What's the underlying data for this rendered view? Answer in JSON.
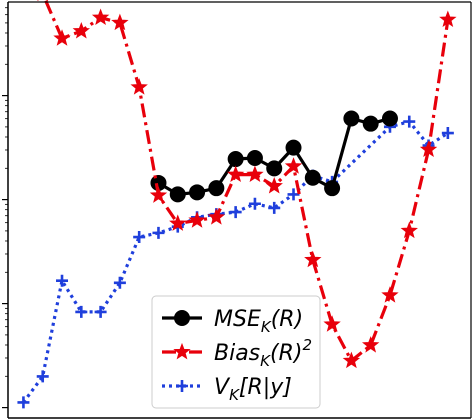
{
  "chart_data": {
    "type": "line",
    "x": [
      1,
      2,
      3,
      4,
      5,
      6,
      7,
      8,
      9,
      10,
      11,
      12,
      13,
      14,
      15,
      16,
      17,
      18,
      19,
      20,
      21,
      22,
      23
    ],
    "yscale": "log",
    "ylim_exp": [
      -4.1,
      -0.1
    ],
    "xlim": [
      0.2,
      24.2
    ],
    "y_tick_exponents": [
      -4,
      -3,
      -2,
      -1
    ],
    "grid": false,
    "legend_position": "bottom-center",
    "series": [
      {
        "name": "MSE",
        "legend_html": "MSE<tspan font-size='15' dy='6'>K</tspan><tspan dy='-6'>(R)</tspan>",
        "color": "#000000",
        "style": "solid",
        "marker": "circle",
        "y_exp": [
          null,
          null,
          null,
          null,
          null,
          null,
          null,
          -1.84,
          -1.95,
          -1.93,
          -1.89,
          -1.61,
          -1.6,
          -1.7,
          -1.5,
          -1.79,
          -1.89,
          -1.22,
          -1.27,
          -1.22,
          null,
          null,
          null
        ]
      },
      {
        "name": "Bias",
        "legend_html": "Bias<tspan font-size='15' dy='6'>K</tspan><tspan dy='-6'>(R)</tspan><tspan font-size='15' dy='-10'>2</tspan>",
        "color": "#e8000b",
        "style": "dashdot",
        "marker": "star",
        "y_exp": [
          -0.01,
          -0.02,
          -0.45,
          -0.38,
          -0.25,
          -0.3,
          -0.92,
          -1.96,
          -2.23,
          -2.2,
          -2.17,
          -1.76,
          -1.76,
          -1.87,
          -1.68,
          -2.58,
          -3.2,
          -3.55,
          -3.4,
          -2.92,
          -2.3,
          -1.52,
          -0.27
        ]
      },
      {
        "name": "V",
        "legend_html": "V<tspan font-size='15' dy='6'>K</tspan><tspan dy='-6'>[R|y]</tspan>",
        "color": "#1f3fdc",
        "style": "dotted",
        "marker": "plus",
        "y_exp": [
          -3.95,
          -3.7,
          -2.78,
          -3.08,
          -3.08,
          -2.8,
          -2.36,
          -2.32,
          -2.26,
          -2.17,
          -2.14,
          -2.12,
          -2.04,
          -2.08,
          -1.95,
          -1.77,
          -1.83,
          null,
          null,
          -1.3,
          -1.25,
          -1.48,
          -1.36
        ]
      }
    ]
  }
}
